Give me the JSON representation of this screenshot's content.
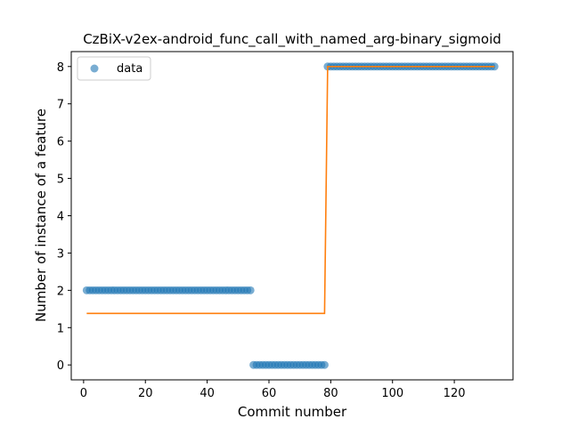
{
  "chart_data": {
    "type": "scatter",
    "title": "CzBiX-v2ex-android_func_call_with_named_arg-binary_sigmoid",
    "xlabel": "Commit number",
    "ylabel": "Number of instance of a feature",
    "xlim": [
      -4,
      139
    ],
    "ylim": [
      -0.4,
      8.4
    ],
    "xticks": [
      0,
      20,
      40,
      60,
      80,
      100,
      120
    ],
    "yticks": [
      0,
      1,
      2,
      3,
      4,
      5,
      6,
      7,
      8
    ],
    "legend": {
      "position": "top-left",
      "entries": [
        "data"
      ]
    },
    "grid": false,
    "colors": {
      "data": "#1f77b4",
      "fit": "#ff7f0e"
    },
    "series": [
      {
        "name": "data",
        "kind": "scatter",
        "segments": [
          {
            "x_start": 1,
            "x_end": 54,
            "y": 2
          },
          {
            "x_start": 55,
            "x_end": 78,
            "y": 0
          },
          {
            "x_start": 79,
            "x_end": 133,
            "y": 8
          }
        ]
      },
      {
        "kind": "line",
        "points": [
          [
            1,
            1.38
          ],
          [
            78,
            1.38
          ],
          [
            79,
            8
          ],
          [
            133,
            8
          ]
        ]
      }
    ]
  }
}
